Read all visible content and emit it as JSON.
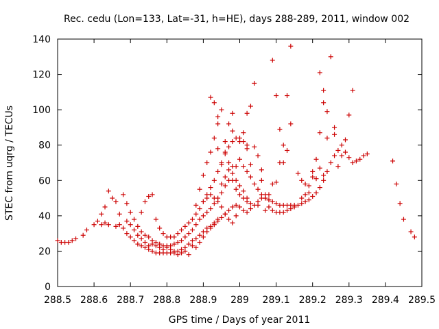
{
  "chart_data": {
    "type": "scatter",
    "title": "Rec. cedu (Lon=133, Lat=-31, h=HE), days 288-289, 2011, window 002",
    "xlabel": "GPS time / Days of year 2011",
    "ylabel": "STEC from uqrg / TECUs",
    "xlim": [
      288.5,
      289.5
    ],
    "ylim": [
      0,
      140
    ],
    "xticks": [
      288.5,
      288.6,
      288.7,
      288.8,
      288.9,
      289.0,
      289.1,
      289.2,
      289.3,
      289.4,
      289.5
    ],
    "xtick_labels": [
      "288.5",
      "288.6",
      "288.7",
      "288.8",
      "288.9",
      "289",
      "289.1",
      "289.2",
      "289.3",
      "289.4",
      "289.5"
    ],
    "yticks": [
      0,
      20,
      40,
      60,
      80,
      100,
      120,
      140
    ],
    "ytick_labels": [
      "0",
      "20",
      "40",
      "60",
      "80",
      "100",
      "120",
      "140"
    ],
    "marker_color": "#cc0000",
    "grid": false,
    "series": [
      {
        "name": "STEC",
        "marker": "plus",
        "points": [
          [
            288.5,
            26
          ],
          [
            288.51,
            25
          ],
          [
            288.52,
            25
          ],
          [
            288.53,
            25
          ],
          [
            288.54,
            26
          ],
          [
            288.55,
            27
          ],
          [
            288.57,
            29
          ],
          [
            288.58,
            32
          ],
          [
            288.6,
            35
          ],
          [
            288.61,
            37
          ],
          [
            288.62,
            35
          ],
          [
            288.63,
            36
          ],
          [
            288.64,
            35
          ],
          [
            288.66,
            34
          ],
          [
            288.67,
            35
          ],
          [
            288.68,
            33
          ],
          [
            288.69,
            30
          ],
          [
            288.7,
            28
          ],
          [
            288.71,
            26
          ],
          [
            288.72,
            24
          ],
          [
            288.73,
            23
          ],
          [
            288.74,
            22
          ],
          [
            288.75,
            21
          ],
          [
            288.76,
            20
          ],
          [
            288.77,
            19
          ],
          [
            288.78,
            19
          ],
          [
            288.79,
            19
          ],
          [
            288.8,
            19
          ],
          [
            288.81,
            19
          ],
          [
            288.82,
            19
          ],
          [
            288.83,
            20
          ],
          [
            288.84,
            21
          ],
          [
            288.85,
            22
          ],
          [
            288.86,
            24
          ],
          [
            288.87,
            26
          ],
          [
            288.88,
            27
          ],
          [
            288.89,
            29
          ],
          [
            288.9,
            31
          ],
          [
            288.91,
            33
          ],
          [
            288.92,
            34
          ],
          [
            288.93,
            36
          ],
          [
            288.94,
            37
          ],
          [
            288.95,
            39
          ],
          [
            288.96,
            41
          ],
          [
            288.97,
            43
          ],
          [
            288.98,
            45
          ],
          [
            288.99,
            46
          ],
          [
            289.0,
            45
          ],
          [
            289.01,
            43
          ],
          [
            289.02,
            42
          ],
          [
            289.03,
            44
          ],
          [
            289.05,
            48
          ],
          [
            289.06,
            50
          ],
          [
            289.07,
            50
          ],
          [
            289.08,
            49
          ],
          [
            289.09,
            48
          ],
          [
            289.1,
            47
          ],
          [
            289.11,
            46
          ],
          [
            289.12,
            46
          ],
          [
            289.13,
            46
          ],
          [
            289.14,
            46
          ],
          [
            289.15,
            46
          ],
          [
            289.16,
            46
          ],
          [
            289.17,
            47
          ],
          [
            289.18,
            48
          ],
          [
            289.19,
            49
          ],
          [
            289.2,
            51
          ],
          [
            289.21,
            53
          ],
          [
            289.22,
            56
          ],
          [
            289.23,
            60
          ],
          [
            289.24,
            65
          ],
          [
            289.25,
            70
          ],
          [
            289.26,
            74
          ],
          [
            289.27,
            77
          ],
          [
            289.28,
            80
          ],
          [
            289.29,
            83
          ],
          [
            289.3,
            73
          ],
          [
            289.31,
            70
          ],
          [
            289.32,
            71
          ],
          [
            289.33,
            72
          ],
          [
            289.34,
            74
          ],
          [
            289.35,
            75
          ],
          [
            289.42,
            71
          ],
          [
            289.43,
            58
          ],
          [
            289.44,
            47
          ],
          [
            289.45,
            38
          ],
          [
            289.47,
            31
          ],
          [
            289.48,
            28
          ],
          [
            288.62,
            41
          ],
          [
            288.63,
            45
          ],
          [
            288.64,
            54
          ],
          [
            288.65,
            50
          ],
          [
            288.66,
            48
          ],
          [
            288.67,
            41
          ],
          [
            288.68,
            52
          ],
          [
            288.69,
            47
          ],
          [
            288.7,
            42
          ],
          [
            288.71,
            38
          ],
          [
            288.72,
            34
          ],
          [
            288.73,
            31
          ],
          [
            288.74,
            29
          ],
          [
            288.75,
            28
          ],
          [
            288.76,
            26
          ],
          [
            288.77,
            25
          ],
          [
            288.78,
            24
          ],
          [
            288.79,
            23
          ],
          [
            288.8,
            23
          ],
          [
            288.81,
            23
          ],
          [
            288.82,
            24
          ],
          [
            288.83,
            25
          ],
          [
            288.84,
            26
          ],
          [
            288.85,
            28
          ],
          [
            288.86,
            30
          ],
          [
            288.87,
            32
          ],
          [
            288.88,
            35
          ],
          [
            288.89,
            38
          ],
          [
            288.9,
            40
          ],
          [
            288.91,
            42
          ],
          [
            288.92,
            44
          ],
          [
            288.93,
            47
          ],
          [
            288.94,
            50
          ],
          [
            288.95,
            53
          ],
          [
            288.96,
            57
          ],
          [
            288.97,
            60
          ],
          [
            288.98,
            64
          ],
          [
            288.99,
            68
          ],
          [
            289.0,
            72
          ],
          [
            289.01,
            68
          ],
          [
            289.02,
            65
          ],
          [
            289.03,
            62
          ],
          [
            289.04,
            58
          ],
          [
            289.05,
            55
          ],
          [
            289.06,
            52
          ],
          [
            289.07,
            50
          ],
          [
            289.08,
            49
          ],
          [
            288.73,
            42
          ],
          [
            288.74,
            48
          ],
          [
            288.75,
            51
          ],
          [
            288.76,
            52
          ],
          [
            288.77,
            38
          ],
          [
            288.78,
            33
          ],
          [
            288.79,
            30
          ],
          [
            288.8,
            28
          ],
          [
            288.81,
            28
          ],
          [
            288.82,
            28
          ],
          [
            288.83,
            30
          ],
          [
            288.84,
            32
          ],
          [
            288.85,
            34
          ],
          [
            288.86,
            36
          ],
          [
            288.87,
            38
          ],
          [
            288.88,
            41
          ],
          [
            288.89,
            44
          ],
          [
            288.9,
            48
          ],
          [
            288.91,
            52
          ],
          [
            288.92,
            56
          ],
          [
            288.93,
            60
          ],
          [
            288.94,
            65
          ],
          [
            288.95,
            70
          ],
          [
            288.96,
            75
          ],
          [
            288.97,
            79
          ],
          [
            288.98,
            82
          ],
          [
            288.99,
            84
          ],
          [
            289.0,
            84
          ],
          [
            289.01,
            82
          ],
          [
            289.02,
            80
          ],
          [
            288.88,
            46
          ],
          [
            288.89,
            55
          ],
          [
            288.9,
            63
          ],
          [
            288.91,
            70
          ],
          [
            288.92,
            76
          ],
          [
            288.93,
            84
          ],
          [
            288.94,
            92
          ],
          [
            288.95,
            100
          ],
          [
            288.92,
            107
          ],
          [
            288.93,
            104
          ],
          [
            288.94,
            96
          ],
          [
            288.96,
            82
          ],
          [
            288.97,
            70
          ],
          [
            288.98,
            60
          ],
          [
            288.99,
            55
          ],
          [
            289.0,
            52
          ],
          [
            289.01,
            50
          ],
          [
            289.02,
            48
          ],
          [
            289.03,
            47
          ],
          [
            289.04,
            46
          ],
          [
            289.05,
            46
          ],
          [
            289.03,
            102
          ],
          [
            289.04,
            115
          ],
          [
            289.02,
            98
          ],
          [
            289.06,
            60
          ],
          [
            289.07,
            52
          ],
          [
            289.08,
            45
          ],
          [
            289.09,
            43
          ],
          [
            289.1,
            42
          ],
          [
            289.11,
            42
          ],
          [
            289.12,
            42
          ],
          [
            289.13,
            43
          ],
          [
            289.14,
            44
          ],
          [
            289.15,
            45
          ],
          [
            289.09,
            128
          ],
          [
            289.1,
            108
          ],
          [
            289.11,
            89
          ],
          [
            289.12,
            80
          ],
          [
            289.13,
            108
          ],
          [
            289.14,
            136
          ],
          [
            289.14,
            92
          ],
          [
            289.13,
            77
          ],
          [
            289.12,
            70
          ],
          [
            289.11,
            70
          ],
          [
            289.1,
            59
          ],
          [
            289.09,
            58
          ],
          [
            289.08,
            52
          ],
          [
            289.07,
            43
          ],
          [
            289.16,
            64
          ],
          [
            289.17,
            60
          ],
          [
            289.18,
            58
          ],
          [
            289.19,
            57
          ],
          [
            289.2,
            65
          ],
          [
            289.21,
            72
          ],
          [
            289.22,
            87
          ],
          [
            289.22,
            121
          ],
          [
            289.23,
            111
          ],
          [
            289.23,
            104
          ],
          [
            289.24,
            99
          ],
          [
            289.24,
            84
          ],
          [
            289.25,
            130
          ],
          [
            289.26,
            90
          ],
          [
            289.26,
            86
          ],
          [
            289.27,
            68
          ],
          [
            289.28,
            74
          ],
          [
            289.2,
            62
          ],
          [
            289.21,
            61
          ],
          [
            289.19,
            53
          ],
          [
            289.18,
            52
          ],
          [
            289.17,
            50
          ],
          [
            289.3,
            97
          ],
          [
            289.31,
            111
          ],
          [
            289.29,
            76
          ],
          [
            289.22,
            67
          ],
          [
            289.23,
            63
          ],
          [
            288.9,
            48
          ],
          [
            288.91,
            50
          ],
          [
            288.92,
            52
          ],
          [
            288.93,
            50
          ],
          [
            288.94,
            48
          ],
          [
            288.95,
            45
          ],
          [
            288.96,
            41
          ],
          [
            288.97,
            38
          ],
          [
            288.98,
            36
          ],
          [
            288.99,
            40
          ],
          [
            288.95,
            58
          ],
          [
            288.96,
            62
          ],
          [
            288.97,
            66
          ],
          [
            288.98,
            68
          ],
          [
            288.99,
            60
          ],
          [
            289.0,
            57
          ],
          [
            289.01,
            54
          ],
          [
            289.02,
            50
          ],
          [
            288.86,
            18
          ],
          [
            288.85,
            20
          ],
          [
            288.84,
            19
          ],
          [
            288.83,
            18
          ],
          [
            288.82,
            20
          ],
          [
            288.81,
            21
          ],
          [
            288.8,
            22
          ],
          [
            288.79,
            21
          ],
          [
            288.78,
            22
          ],
          [
            288.77,
            23
          ],
          [
            288.76,
            24
          ],
          [
            288.75,
            23
          ],
          [
            288.74,
            25
          ],
          [
            288.73,
            27
          ],
          [
            288.72,
            29
          ],
          [
            288.71,
            32
          ],
          [
            288.7,
            35
          ],
          [
            288.69,
            37
          ],
          [
            288.88,
            22
          ],
          [
            288.87,
            23
          ],
          [
            288.89,
            25
          ],
          [
            288.9,
            28
          ],
          [
            288.91,
            31
          ],
          [
            288.92,
            33
          ],
          [
            288.93,
            35
          ],
          [
            288.94,
            38
          ],
          [
            288.96,
            76
          ],
          [
            288.98,
            88
          ],
          [
            288.94,
            78
          ],
          [
            288.95,
            69
          ],
          [
            289.04,
            79
          ],
          [
            289.05,
            74
          ],
          [
            289.06,
            66
          ],
          [
            289.03,
            69
          ],
          [
            289.02,
            78
          ],
          [
            289.01,
            87
          ],
          [
            289.0,
            82
          ],
          [
            288.98,
            98
          ],
          [
            288.97,
            92
          ]
        ]
      }
    ]
  }
}
